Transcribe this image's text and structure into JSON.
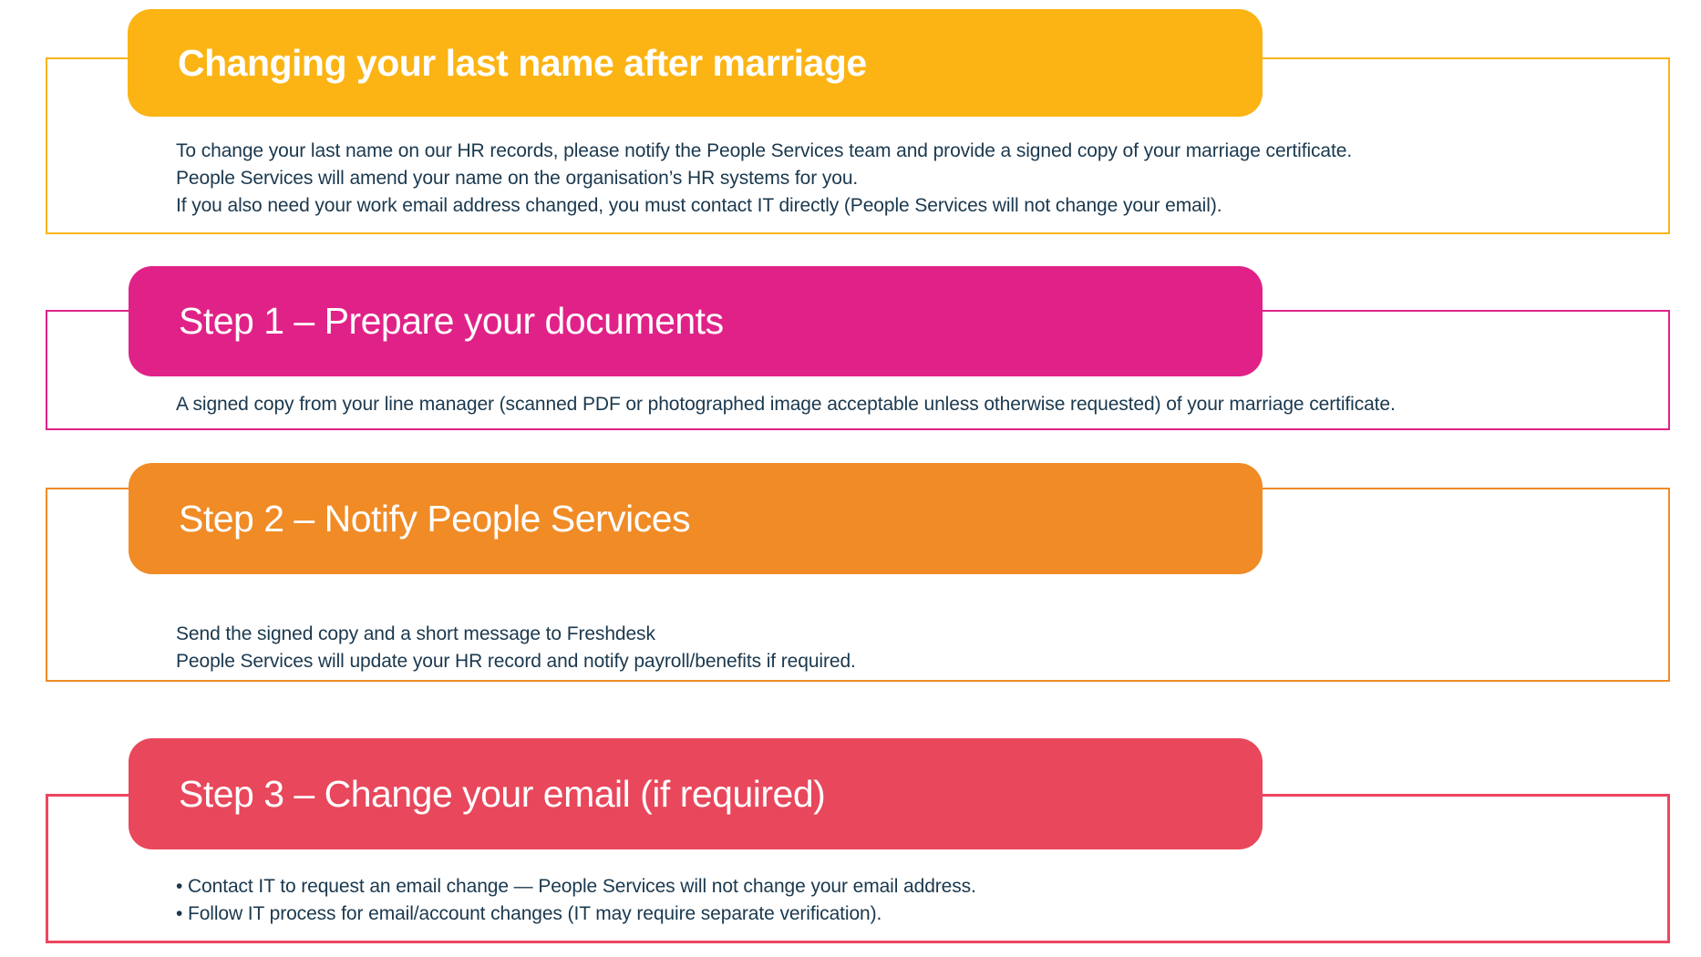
{
  "page": {
    "background_color": "#FFFFFF",
    "text_color": "#1A384E"
  },
  "sections": [
    {
      "id": "intro",
      "title": "Changing your last name after marriage",
      "accent_color": "#FBB414",
      "border_color": "#FBB414",
      "lines": [
        "To change your last name on our HR records, please notify the People Services team and provide a signed copy of your marriage certificate.",
        "People Services will amend your name on the organisation’s HR systems for you.",
        "If you also need your work email address changed, you must contact IT directly (People Services will not change your email)."
      ]
    },
    {
      "id": "step-1",
      "title": "Step 1 – Prepare your documents",
      "accent_color": "#E02288",
      "border_color": "#E02288",
      "lines": [
        "A signed copy from your line manager (scanned PDF or photographed image acceptable unless otherwise requested) of your marriage certificate."
      ]
    },
    {
      "id": "step-2",
      "title": "Step 2 – Notify People Services",
      "accent_color": "#F08B26",
      "border_color": "#F08B26",
      "lines": [
        "Send the signed copy and a short message to Freshdesk",
        "People Services will update your HR record and notify payroll/benefits if required."
      ]
    },
    {
      "id": "step-3",
      "title": "Step 3 – Change your email (if required)",
      "accent_color": "#E8475C",
      "border_color": "#ED4560",
      "lines": [
        "•  Contact IT to request an email change — People Services will not change your email address.",
        "•  Follow IT process for email/account changes (IT may require separate verification)."
      ]
    }
  ]
}
